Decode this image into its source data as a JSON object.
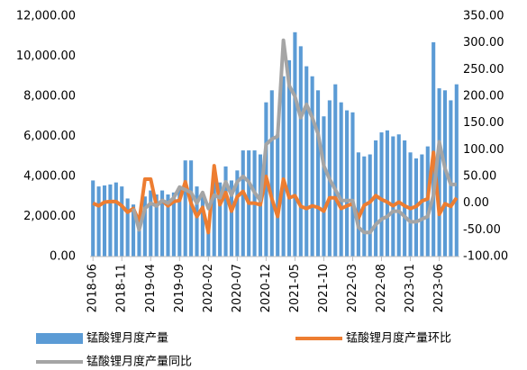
{
  "chart_data": {
    "type": "bar",
    "categories": [
      "2018-06",
      null,
      null,
      null,
      null,
      "2018-11",
      null,
      null,
      null,
      null,
      "2019-04",
      null,
      null,
      null,
      null,
      "2019-09",
      null,
      null,
      null,
      null,
      "2020-02",
      null,
      null,
      null,
      null,
      "2020-07",
      null,
      null,
      null,
      null,
      "2020-12",
      null,
      null,
      null,
      null,
      "2021-05",
      null,
      null,
      null,
      null,
      "2021-10",
      null,
      null,
      null,
      null,
      "2022-03",
      null,
      null,
      null,
      null,
      "2022-08",
      null,
      null,
      null,
      null,
      "2023-01",
      null,
      null,
      null,
      null,
      "2023-06",
      null,
      null,
      null
    ],
    "series": [
      {
        "name": "锰酸锂月度产量",
        "type": "bar",
        "color": "#5b9bd5",
        "values": [
          3800,
          3500,
          3550,
          3600,
          3700,
          3500,
          2900,
          2600,
          1700,
          3000,
          3300,
          3100,
          3300,
          3100,
          3200,
          3400,
          4800,
          4800,
          3500,
          3200,
          1500,
          3800,
          3700,
          4500,
          3800,
          4300,
          5300,
          5300,
          5300,
          5100,
          7700,
          8300,
          6100,
          9000,
          9800,
          11200,
          10500,
          9500,
          9000,
          8300,
          7000,
          7800,
          8600,
          7700,
          7300,
          7200,
          5200,
          5000,
          5100,
          5800,
          6200,
          6300,
          6000,
          6100,
          5800,
          5200,
          4900,
          5100,
          5500,
          10700,
          8400,
          8300,
          7800,
          8600
        ]
      },
      {
        "name": "锰酸锂月度产量环比",
        "type": "line",
        "axis": "y2",
        "color": "#ed7d31",
        "values": [
          0,
          -5,
          2,
          3,
          3,
          -5,
          -17,
          -10,
          -35,
          45,
          45,
          -5,
          5,
          -5,
          3,
          5,
          40,
          0,
          -25,
          -8,
          -55,
          70,
          -3,
          20,
          -15,
          12,
          22,
          0,
          0,
          -3,
          50,
          8,
          -25,
          45,
          10,
          14,
          -6,
          -10,
          -5,
          -8,
          -15,
          10,
          10,
          -10,
          -5,
          -1,
          -28,
          -4,
          2,
          14,
          7,
          2,
          -5,
          2,
          -5,
          -10,
          -6,
          4,
          8,
          95,
          -21,
          -1,
          -6,
          10
        ]
      },
      {
        "name": "锰酸锂月度产量同比",
        "type": "line",
        "axis": "y2",
        "color": "#a5a5a5",
        "values": [
          null,
          null,
          null,
          null,
          null,
          null,
          null,
          -10,
          -50,
          -10,
          0,
          -5,
          5,
          0,
          10,
          30,
          25,
          20,
          0,
          20,
          -10,
          15,
          10,
          40,
          15,
          40,
          50,
          40,
          20,
          5,
          110,
          120,
          125,
          305,
          220,
          200,
          160,
          185,
          160,
          130,
          70,
          45,
          25,
          5,
          5,
          5,
          -45,
          -55,
          -55,
          -40,
          -30,
          -25,
          -15,
          -15,
          -25,
          -35,
          -35,
          -30,
          -25,
          15,
          115,
          65,
          35,
          35
        ]
      }
    ],
    "ylim": [
      0,
      12000
    ],
    "yticks": [
      {
        "value": 0,
        "label": "0.00"
      },
      {
        "value": 2000,
        "label": "2,000.00"
      },
      {
        "value": 4000,
        "label": "4,000.00"
      },
      {
        "value": 6000,
        "label": "6,000.00"
      },
      {
        "value": 8000,
        "label": "8,000.00"
      },
      {
        "value": 10000,
        "label": "10,000.00"
      },
      {
        "value": 12000,
        "label": "12,000.00"
      }
    ],
    "y2lim": [
      -100,
      350
    ],
    "y2ticks": [
      {
        "value": -100,
        "label": "-100.00"
      },
      {
        "value": -50,
        "label": "-50.00"
      },
      {
        "value": 0,
        "label": "0.00"
      },
      {
        "value": 50,
        "label": "50.00"
      },
      {
        "value": 100,
        "label": "100.00"
      },
      {
        "value": 150,
        "label": "150.00"
      },
      {
        "value": 200,
        "label": "200.00"
      },
      {
        "value": 250,
        "label": "250.00"
      },
      {
        "value": 300,
        "label": "300.00"
      },
      {
        "value": 350,
        "label": "350.00"
      }
    ],
    "grid": false
  }
}
